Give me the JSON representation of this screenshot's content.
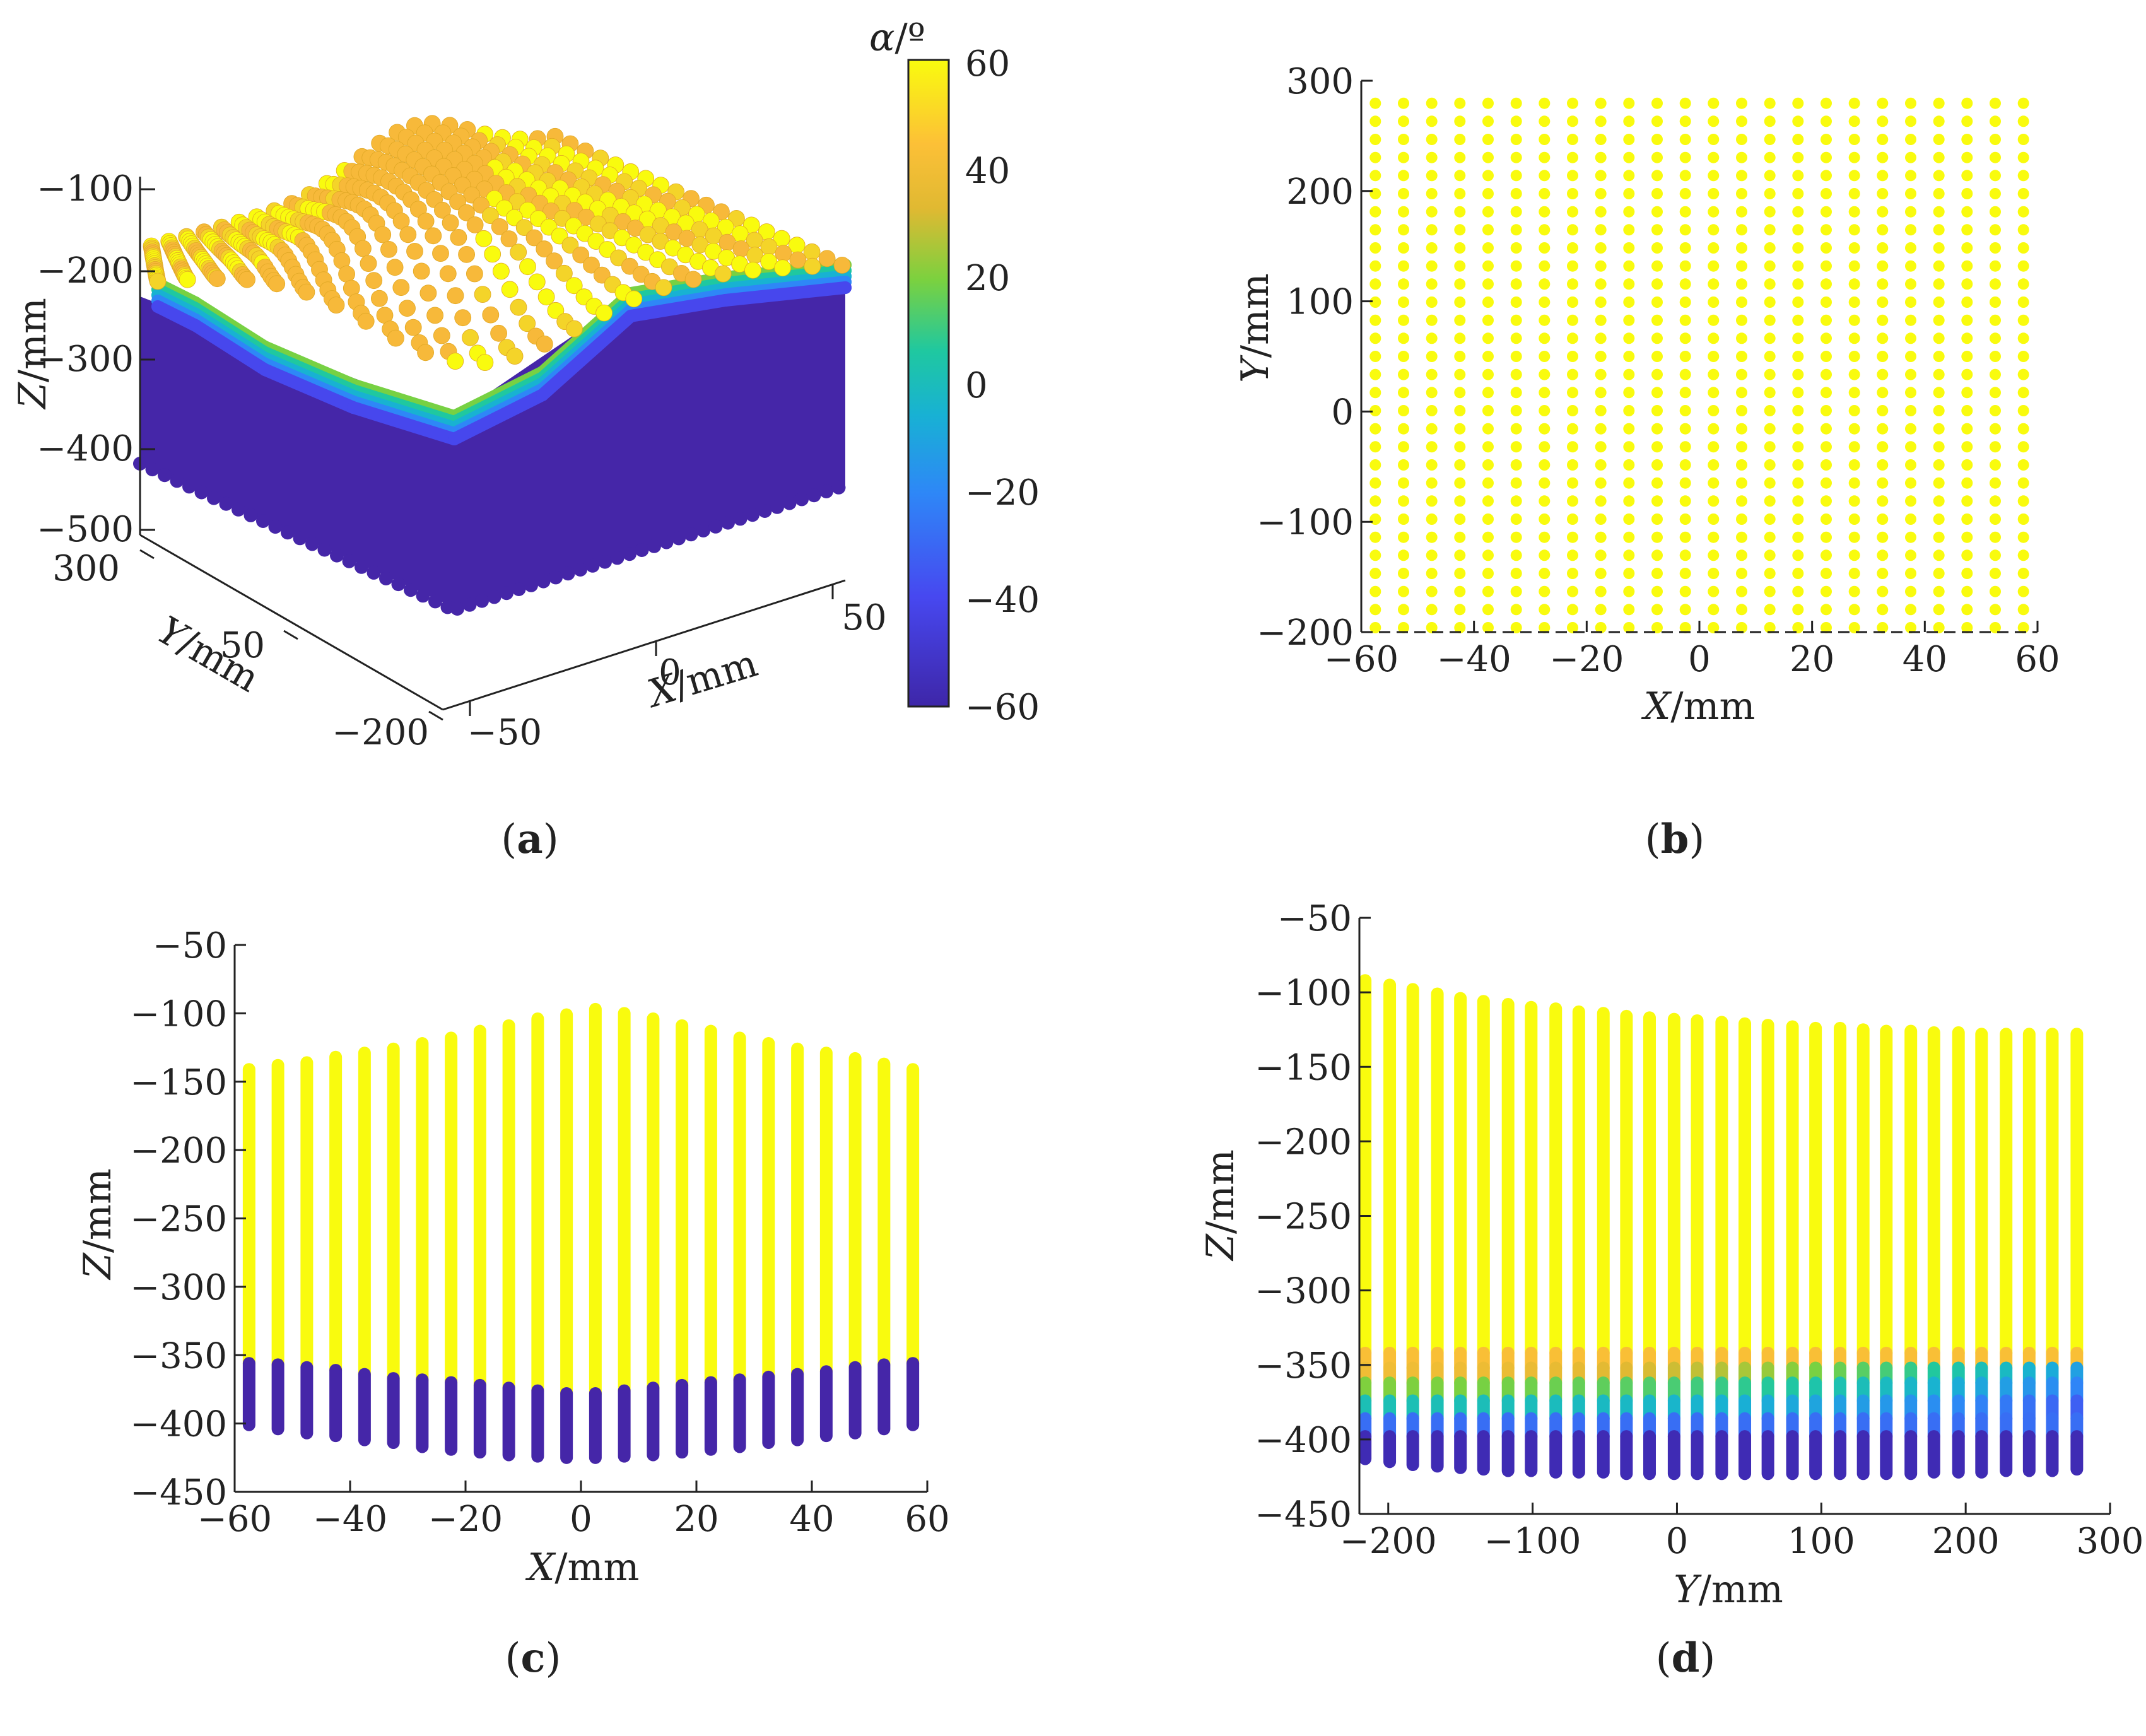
{
  "colors": {
    "yellow": "#f9fb0e",
    "indigo": "#4526a8",
    "axis": "#222222",
    "colormap": [
      "#3e26a8",
      "#4748f0",
      "#2e87f7",
      "#18b1d4",
      "#1fc8a0",
      "#7bd13f",
      "#e0b932",
      "#fcc037",
      "#f9fb0e"
    ]
  },
  "chart_data": [
    {
      "type": "scatter3d",
      "panel": "a",
      "caption": "a",
      "xlabel_var": "X",
      "xlabel_unit": "/mm",
      "ylabel_var": "Y",
      "ylabel_unit": "/mm",
      "zlabel_var": "Z",
      "zlabel_unit": "/mm",
      "xlim": [
        -60,
        60
      ],
      "ylim": [
        -200,
        300
      ],
      "zlim": [
        -500,
        -100
      ],
      "xticks": [
        "−50",
        "0",
        "50"
      ],
      "yticks": [
        "−200",
        "50",
        "300"
      ],
      "zticks": [
        "−100",
        "−200",
        "−300",
        "−400",
        "−500"
      ],
      "x": [
        -57.5,
        -52.5,
        -47.5,
        -42.5,
        -37.5,
        -32.5,
        -27.5,
        -22.5,
        -17.5,
        -12.5,
        -7.5,
        -2.5,
        2.5,
        7.5,
        12.5,
        17.5,
        22.5,
        27.5,
        32.5,
        37.5,
        42.5,
        47.5,
        52.5,
        57.5
      ],
      "z_top_along_x": [
        -140,
        -137,
        -135,
        -132,
        -129,
        -126,
        -122,
        -118,
        -113,
        -109,
        -104,
        -101,
        -97,
        -100,
        -104,
        -109,
        -113,
        -118,
        -122,
        -126,
        -129,
        -132,
        -137,
        -141
      ],
      "colorbar": {
        "label_var": "α",
        "label_unit": "/º",
        "min": -60,
        "max": 60,
        "ticks": [
          "60",
          "40",
          "20",
          "0",
          "−20",
          "−40",
          "−60"
        ]
      }
    },
    {
      "type": "scatter",
      "panel": "b",
      "caption": "b",
      "xlabel_var": "X",
      "xlabel_unit": "/mm",
      "ylabel_var": "Y",
      "ylabel_unit": "/mm",
      "xlim": [
        -60,
        60
      ],
      "ylim": [
        -200,
        300
      ],
      "xticks": [
        -60,
        -40,
        -20,
        0,
        20,
        40,
        60
      ],
      "xtick_labels": [
        "−60",
        "−40",
        "−20",
        "0",
        "20",
        "40",
        "60"
      ],
      "yticks": [
        300,
        200,
        100,
        0,
        -100,
        -200
      ],
      "ytick_labels": [
        "300",
        "200",
        "100",
        "0",
        "−100",
        "−200"
      ],
      "x_start": -57.5,
      "x_step": 5,
      "x_count": 24,
      "y_start": -196,
      "y_step": 16.4,
      "y_count": 30,
      "color": "yellow"
    },
    {
      "type": "scatter",
      "panel": "c",
      "caption": "c",
      "xlabel_var": "X",
      "xlabel_unit": "/mm",
      "ylabel_var": "Z",
      "ylabel_unit": "/mm",
      "xlim": [
        -60,
        60
      ],
      "ylim": [
        -450,
        -50
      ],
      "xticks": [
        -60,
        -40,
        -20,
        0,
        20,
        40,
        60
      ],
      "xtick_labels": [
        "−60",
        "−40",
        "−20",
        "0",
        "20",
        "40",
        "60"
      ],
      "yticks": [
        -50,
        -100,
        -150,
        -200,
        -250,
        -300,
        -350,
        -400,
        -450
      ],
      "ytick_labels": [
        "−50",
        "−100",
        "−150",
        "−200",
        "−250",
        "−300",
        "−350",
        "−400",
        "−450"
      ],
      "x": [
        -57.5,
        -52.5,
        -47.5,
        -42.5,
        -37.5,
        -32.5,
        -27.5,
        -22.5,
        -17.5,
        -12.5,
        -7.5,
        -2.5,
        2.5,
        7.5,
        12.5,
        17.5,
        22.5,
        27.5,
        32.5,
        37.5,
        42.5,
        47.5,
        52.5,
        57.5
      ],
      "z_top": [
        -141,
        -138,
        -136,
        -132,
        -129,
        -126,
        -122,
        -118,
        -113,
        -109,
        -104,
        -101,
        -97,
        -100,
        -104,
        -109,
        -113,
        -118,
        -122,
        -126,
        -129,
        -133,
        -137,
        -141
      ],
      "z_split": [
        -356,
        -357,
        -359,
        -361,
        -364,
        -367,
        -368,
        -370,
        -372,
        -374,
        -376,
        -378,
        -378,
        -376,
        -374,
        -372,
        -370,
        -368,
        -366,
        -364,
        -362,
        -359,
        -357,
        -356
      ],
      "z_bottom": [
        -401,
        -404,
        -407,
        -409,
        -412,
        -414,
        -417,
        -419,
        -421,
        -423,
        -424,
        -425,
        -425,
        -424,
        -423,
        -421,
        -419,
        -417,
        -414,
        -412,
        -409,
        -407,
        -404,
        -401
      ]
    },
    {
      "type": "scatter",
      "panel": "d",
      "caption": "d",
      "xlabel_var": "Y",
      "xlabel_unit": "/mm",
      "ylabel_var": "Z",
      "ylabel_unit": "/mm",
      "xlim": [
        -220,
        300
      ],
      "ylim": [
        -450,
        -50
      ],
      "xticks": [
        -200,
        -100,
        0,
        100,
        200,
        300
      ],
      "xtick_labels": [
        "−200",
        "−100",
        "0",
        "100",
        "200",
        "300"
      ],
      "yticks": [
        -50,
        -100,
        -150,
        -200,
        -250,
        -300,
        -350,
        -400,
        -450
      ],
      "ytick_labels": [
        "−50",
        "−100",
        "−150",
        "−200",
        "−250",
        "−300",
        "−350",
        "−400",
        "−450"
      ],
      "x": [
        -216,
        -199,
        -183,
        -166,
        -150,
        -134,
        -117,
        -101,
        -84,
        -68,
        -51,
        -35,
        -19,
        -2,
        14,
        31,
        47,
        63,
        80,
        96,
        113,
        129,
        145,
        162,
        178,
        195,
        211,
        228,
        244,
        260,
        277
      ],
      "z_top": [
        -92,
        -95,
        -98,
        -101,
        -104,
        -106,
        -108,
        -110,
        -111,
        -113,
        -114,
        -116,
        -117,
        -118,
        -119,
        -120,
        -121,
        -122,
        -123,
        -124,
        -124,
        -125,
        -126,
        -126,
        -127,
        -127,
        -128,
        -128,
        -128,
        -128,
        -128
      ],
      "z_bottom": [
        -413,
        -415,
        -417,
        -418,
        -419,
        -420,
        -421,
        -421,
        -422,
        -422,
        -422,
        -423,
        -423,
        -423,
        -423,
        -423,
        -423,
        -423,
        -423,
        -423,
        -423,
        -423,
        -423,
        -423,
        -422,
        -422,
        -422,
        -421,
        -421,
        -421,
        -420
      ]
    }
  ]
}
